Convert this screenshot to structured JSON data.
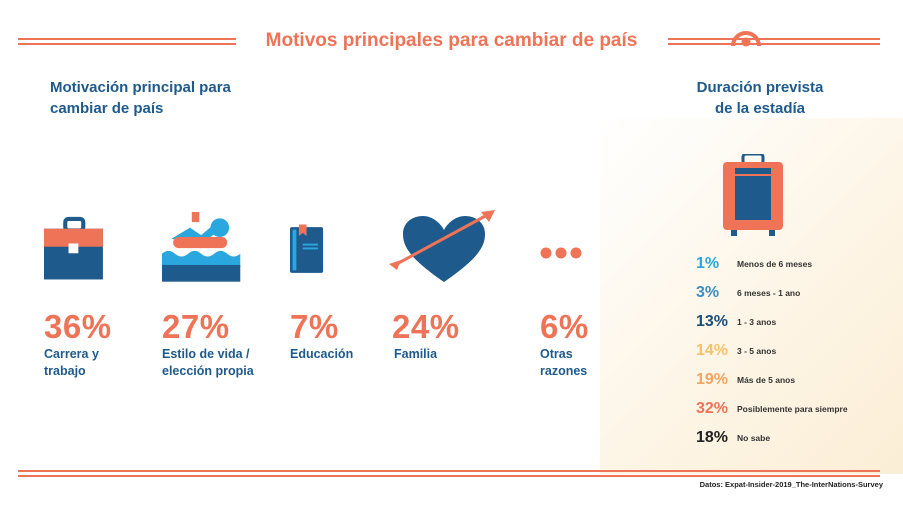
{
  "header": {
    "title": "Motivos principales para cambiar de país"
  },
  "left_section": {
    "title_line1": "Motivación principal para",
    "title_line2": "cambiar de país"
  },
  "right_section": {
    "title_line1": "Duración prevista",
    "title_line2": "de la estadía"
  },
  "colors": {
    "accent": "#ee7357",
    "navy": "#1e5a8c",
    "dark_blue": "#1b4f7a",
    "light_blue": "#2aa7df",
    "mid_blue": "#3c8ec4",
    "yellow": "#f5c26b",
    "orange": "#f2a462",
    "black": "#222222"
  },
  "chart_data": [
    {
      "type": "bar",
      "title": "Motivación principal para cambiar de país",
      "categories": [
        "Carrera y trabajo",
        "Estilo de vida / elección propia",
        "Educación",
        "Familia",
        "Otras razones"
      ],
      "values": [
        36,
        27,
        7,
        24,
        6
      ],
      "unit": "%",
      "items": [
        {
          "pct": "36%",
          "label_line1": "Carrera y",
          "label_line2": "trabajo",
          "icon": "briefcase-icon"
        },
        {
          "pct": "27%",
          "label_line1": "Estilo de vida /",
          "label_line2": "elección propia",
          "icon": "lifestyle-icon"
        },
        {
          "pct": "7%",
          "label_line1": "Educación",
          "label_line2": "",
          "icon": "book-icon"
        },
        {
          "pct": "24%",
          "label_line1": "Familia",
          "label_line2": "",
          "icon": "heart-arrow-icon"
        },
        {
          "pct": "6%",
          "label_line1": "Otras",
          "label_line2": "razones",
          "icon": "more-dots-icon"
        }
      ]
    },
    {
      "type": "table",
      "title": "Duración prevista de la estadía",
      "categories": [
        "Menos de 6 meses",
        "6 meses - 1 ano",
        "1 - 3 anos",
        "3 - 5 anos",
        "Más de 5 anos",
        "Posiblemente para siempre",
        "No sabe"
      ],
      "values": [
        1,
        3,
        13,
        14,
        19,
        32,
        18
      ],
      "unit": "%",
      "rows": [
        {
          "pct": "1%",
          "label": "Menos de 6 meses",
          "color": "#2aa7df"
        },
        {
          "pct": "3%",
          "label": "6 meses - 1 ano",
          "color": "#3c8ec4"
        },
        {
          "pct": "13%",
          "label": "1 - 3 anos",
          "color": "#1b4f7a"
        },
        {
          "pct": "14%",
          "label": "3 - 5 anos",
          "color": "#f5c26b"
        },
        {
          "pct": "19%",
          "label": "Más de 5 anos",
          "color": "#f2a462"
        },
        {
          "pct": "32%",
          "label": "Posiblemente para siempre",
          "color": "#ee7357"
        },
        {
          "pct": "18%",
          "label": "No sabe",
          "color": "#222222"
        }
      ]
    }
  ],
  "footer": {
    "source": "Datos: Expat-Insider-2019_The-InterNations-Survey"
  }
}
